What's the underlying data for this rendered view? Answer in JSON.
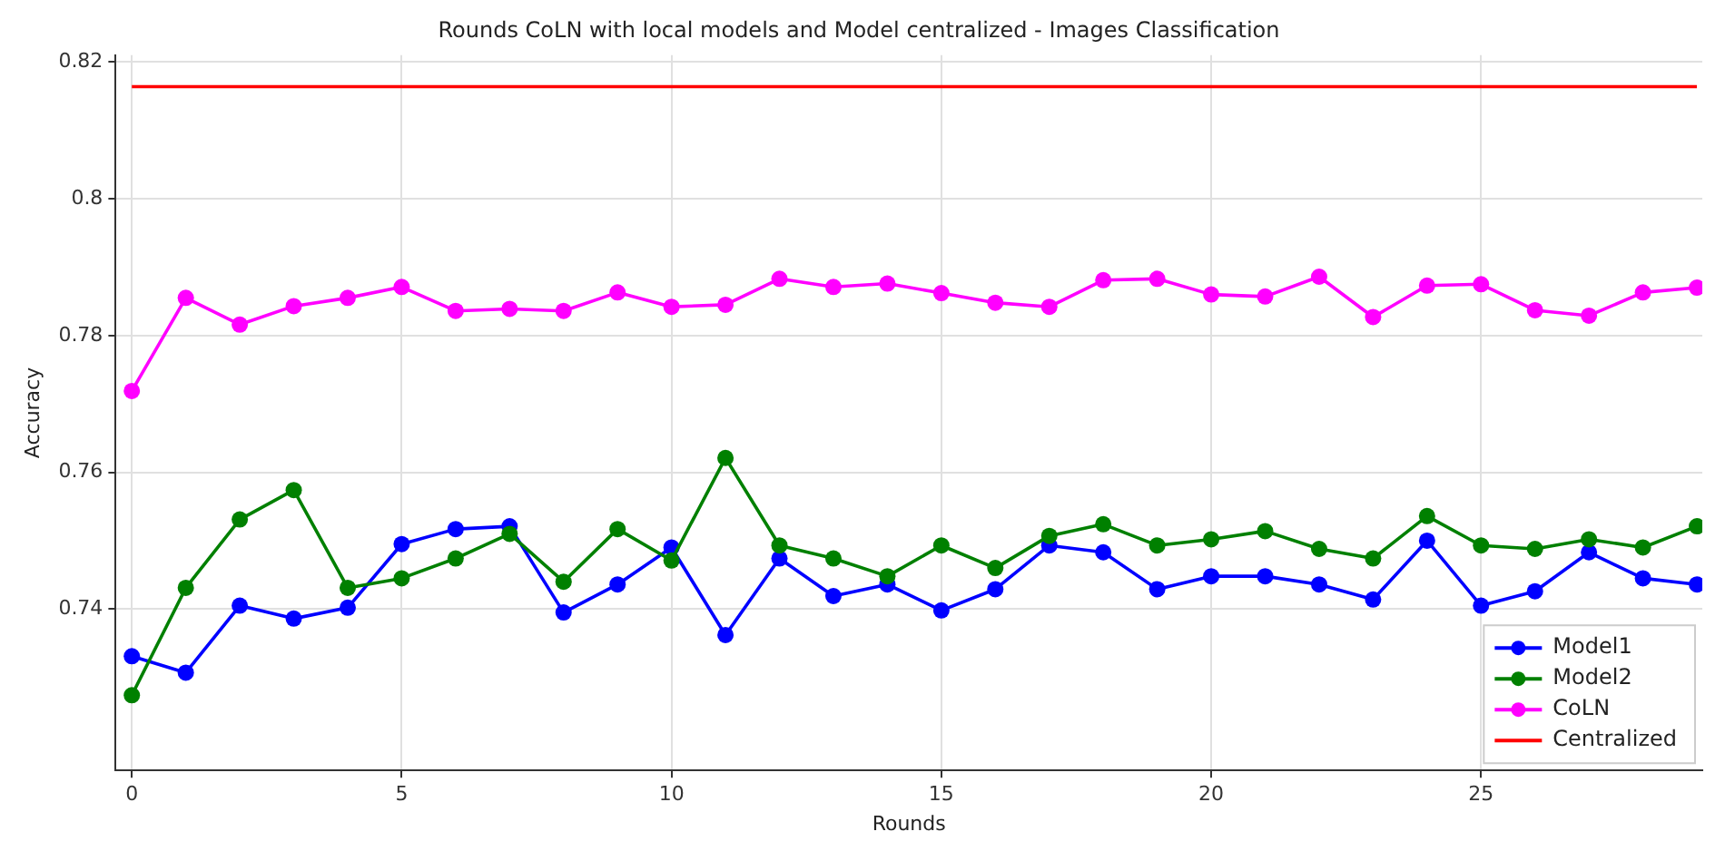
{
  "chart_data": {
    "type": "line",
    "title": "Rounds CoLN with local models and Model centralized - Images Classification",
    "xlabel": "Rounds",
    "ylabel": "Accuracy",
    "x": [
      0,
      1,
      2,
      3,
      4,
      5,
      6,
      7,
      8,
      9,
      10,
      11,
      12,
      13,
      14,
      15,
      16,
      17,
      18,
      19,
      20,
      21,
      22,
      23,
      24,
      25,
      26,
      27,
      28,
      29
    ],
    "series": [
      {
        "name": "Model1",
        "color": "#0000ff",
        "values": [
          0.7331,
          0.7307,
          0.7405,
          0.7386,
          0.7402,
          0.7495,
          0.7517,
          0.7521,
          0.7395,
          0.7436,
          0.749,
          0.7362,
          0.7474,
          0.7419,
          0.7436,
          0.7398,
          0.7429,
          0.7493,
          0.7483,
          0.7429,
          0.7448,
          0.7448,
          0.7436,
          0.7414,
          0.75,
          0.7405,
          0.7426,
          0.7483,
          0.7445,
          0.7436
        ]
      },
      {
        "name": "Model2",
        "color": "#008000",
        "values": [
          0.7274,
          0.7431,
          0.7531,
          0.7574,
          0.7431,
          0.7445,
          0.7474,
          0.751,
          0.744,
          0.7517,
          0.7471,
          0.7621,
          0.7493,
          0.7474,
          0.7448,
          0.7493,
          0.746,
          0.7507,
          0.7524,
          0.7493,
          0.7502,
          0.7514,
          0.7488,
          0.7474,
          0.7536,
          0.7493,
          0.7488,
          0.7502,
          0.749,
          0.7521
        ]
      },
      {
        "name": "CoLN",
        "color": "#ff00ff",
        "values": [
          0.7719,
          0.7855,
          0.7816,
          0.7843,
          0.7855,
          0.7871,
          0.7836,
          0.7839,
          0.7836,
          0.7863,
          0.7842,
          0.7845,
          0.7883,
          0.7871,
          0.7876,
          0.7862,
          0.7848,
          0.7842,
          0.7881,
          0.7883,
          0.786,
          0.7857,
          0.7886,
          0.7827,
          0.7873,
          0.7875,
          0.7837,
          0.7829,
          0.7863,
          0.787
        ]
      },
      {
        "name": "Centralized",
        "color": "#ff0000",
        "marker": "none",
        "x": [
          0,
          29
        ],
        "values": [
          0.8164,
          0.8164
        ]
      }
    ],
    "xlim": [
      -0.3,
      29.1
    ],
    "ylim": [
      0.7164,
      0.821
    ],
    "xticks": [
      0,
      5,
      10,
      15,
      20,
      25
    ],
    "yticks": [
      0.74,
      0.76,
      0.78,
      0.8,
      0.82
    ],
    "grid": true,
    "legend": "bottom right",
    "marker": "circle",
    "line_style": "solid"
  }
}
